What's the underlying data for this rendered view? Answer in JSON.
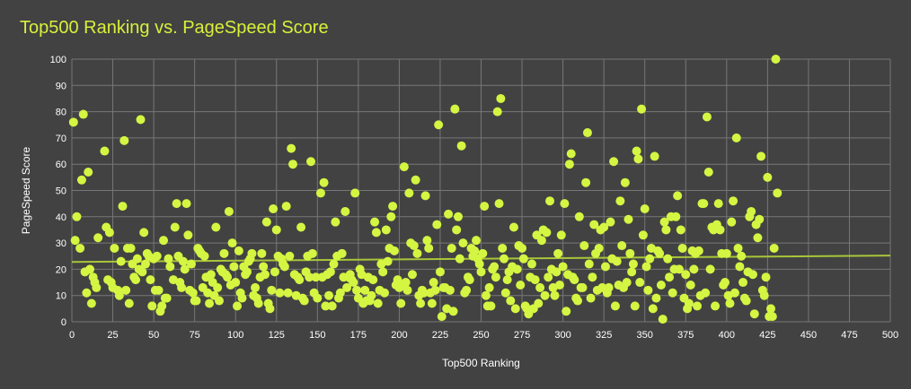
{
  "chart_data": {
    "type": "scatter",
    "title": "Top500 Ranking vs. PageSpeed Score",
    "xlabel": "Top500 Ranking",
    "ylabel": "PageSpeed Score",
    "xlim": [
      0,
      500
    ],
    "ylim": [
      0,
      100
    ],
    "xticks": [
      "0",
      "25",
      "50",
      "75",
      "100",
      "125",
      "150",
      "175",
      "200",
      "225",
      "250",
      "275",
      "300",
      "325",
      "350",
      "375",
      "400",
      "425",
      "450",
      "475",
      "500"
    ],
    "yticks": [
      "0",
      "10",
      "20",
      "30",
      "40",
      "50",
      "60",
      "70",
      "80",
      "90",
      "100"
    ],
    "grid": true,
    "legend": "none",
    "trendline": {
      "type": "linear",
      "start": [
        0,
        22.8
      ],
      "end": [
        500,
        25.2
      ]
    },
    "colors": {
      "points": "#d4f542",
      "trendline": "#a8c63a",
      "background": "#424242",
      "grid": "#777777",
      "text": "#ffffff",
      "title": "#d8f03a"
    },
    "points": [
      [
        1,
        76
      ],
      [
        2,
        31
      ],
      [
        3,
        40
      ],
      [
        5,
        28
      ],
      [
        6,
        54
      ],
      [
        7,
        79
      ],
      [
        8,
        19
      ],
      [
        9,
        11
      ],
      [
        10,
        57
      ],
      [
        11,
        20
      ],
      [
        12,
        7
      ],
      [
        13,
        17
      ],
      [
        14,
        15
      ],
      [
        15,
        13
      ],
      [
        16,
        32
      ],
      [
        20,
        65
      ],
      [
        21,
        36
      ],
      [
        22,
        16
      ],
      [
        23,
        34
      ],
      [
        24,
        15
      ],
      [
        25,
        13
      ],
      [
        26,
        28
      ],
      [
        28,
        12
      ],
      [
        29,
        10
      ],
      [
        30,
        23
      ],
      [
        31,
        44
      ],
      [
        32,
        69
      ],
      [
        33,
        12
      ],
      [
        34,
        28
      ],
      [
        35,
        7
      ],
      [
        36,
        28
      ],
      [
        37,
        22
      ],
      [
        38,
        17
      ],
      [
        39,
        16
      ],
      [
        40,
        24
      ],
      [
        41,
        20
      ],
      [
        42,
        77
      ],
      [
        43,
        19
      ],
      [
        44,
        34
      ],
      [
        45,
        22
      ],
      [
        46,
        26
      ],
      [
        47,
        25
      ],
      [
        48,
        16
      ],
      [
        49,
        6
      ],
      [
        50,
        24
      ],
      [
        51,
        12
      ],
      [
        52,
        25
      ],
      [
        53,
        12
      ],
      [
        54,
        4
      ],
      [
        55,
        6
      ],
      [
        56,
        31
      ],
      [
        57,
        9
      ],
      [
        58,
        9
      ],
      [
        59,
        24
      ],
      [
        60,
        21
      ],
      [
        62,
        16
      ],
      [
        63,
        36
      ],
      [
        64,
        45
      ],
      [
        65,
        25
      ],
      [
        66,
        15
      ],
      [
        67,
        13
      ],
      [
        68,
        23
      ],
      [
        69,
        20
      ],
      [
        70,
        45
      ],
      [
        71,
        33
      ],
      [
        72,
        12
      ],
      [
        73,
        22
      ],
      [
        74,
        11
      ],
      [
        75,
        8
      ],
      [
        76,
        8
      ],
      [
        77,
        28
      ],
      [
        78,
        27
      ],
      [
        79,
        26
      ],
      [
        80,
        13
      ],
      [
        81,
        25
      ],
      [
        82,
        17
      ],
      [
        83,
        11
      ],
      [
        84,
        7
      ],
      [
        85,
        18
      ],
      [
        86,
        15
      ],
      [
        87,
        10
      ],
      [
        88,
        36
      ],
      [
        89,
        13
      ],
      [
        90,
        8
      ],
      [
        91,
        20
      ],
      [
        92,
        19
      ],
      [
        93,
        26
      ],
      [
        94,
        18
      ],
      [
        95,
        17
      ],
      [
        96,
        42
      ],
      [
        97,
        14
      ],
      [
        98,
        30
      ],
      [
        99,
        21
      ],
      [
        100,
        15
      ],
      [
        101,
        6
      ],
      [
        102,
        27
      ],
      [
        103,
        11
      ],
      [
        104,
        9
      ],
      [
        105,
        21
      ],
      [
        106,
        18
      ],
      [
        107,
        19
      ],
      [
        108,
        23
      ],
      [
        109,
        24
      ],
      [
        110,
        26
      ],
      [
        111,
        10
      ],
      [
        112,
        13
      ],
      [
        113,
        9
      ],
      [
        114,
        7
      ],
      [
        115,
        17
      ],
      [
        116,
        26
      ],
      [
        117,
        21
      ],
      [
        118,
        18
      ],
      [
        119,
        38
      ],
      [
        120,
        7
      ],
      [
        121,
        5
      ],
      [
        122,
        12
      ],
      [
        123,
        43
      ],
      [
        124,
        19
      ],
      [
        125,
        35
      ],
      [
        126,
        25
      ],
      [
        127,
        11
      ],
      [
        128,
        24
      ],
      [
        129,
        22
      ],
      [
        130,
        21
      ],
      [
        131,
        44
      ],
      [
        132,
        11
      ],
      [
        133,
        25
      ],
      [
        134,
        66
      ],
      [
        135,
        60
      ],
      [
        136,
        18
      ],
      [
        137,
        10
      ],
      [
        138,
        17
      ],
      [
        139,
        16
      ],
      [
        140,
        36
      ],
      [
        141,
        9
      ],
      [
        142,
        8
      ],
      [
        143,
        19
      ],
      [
        144,
        25
      ],
      [
        145,
        17
      ],
      [
        146,
        61
      ],
      [
        147,
        26
      ],
      [
        148,
        11
      ],
      [
        149,
        17
      ],
      [
        150,
        9
      ],
      [
        152,
        49
      ],
      [
        153,
        17
      ],
      [
        154,
        53
      ],
      [
        155,
        6
      ],
      [
        156,
        18
      ],
      [
        157,
        10
      ],
      [
        158,
        19
      ],
      [
        159,
        6
      ],
      [
        160,
        22
      ],
      [
        161,
        38
      ],
      [
        162,
        25
      ],
      [
        163,
        9
      ],
      [
        164,
        11
      ],
      [
        165,
        26
      ],
      [
        166,
        17
      ],
      [
        167,
        42
      ],
      [
        168,
        13
      ],
      [
        169,
        17
      ],
      [
        170,
        18
      ],
      [
        171,
        16
      ],
      [
        172,
        15
      ],
      [
        173,
        49
      ],
      [
        174,
        12
      ],
      [
        175,
        9
      ],
      [
        176,
        20
      ],
      [
        177,
        18
      ],
      [
        178,
        7
      ],
      [
        179,
        12
      ],
      [
        180,
        8
      ],
      [
        181,
        17
      ],
      [
        182,
        8
      ],
      [
        183,
        10
      ],
      [
        184,
        16
      ],
      [
        185,
        38
      ],
      [
        186,
        34
      ],
      [
        187,
        7
      ],
      [
        188,
        12
      ],
      [
        189,
        22
      ],
      [
        190,
        19
      ],
      [
        191,
        11
      ],
      [
        192,
        35
      ],
      [
        193,
        23
      ],
      [
        194,
        28
      ],
      [
        195,
        40
      ],
      [
        196,
        44
      ],
      [
        197,
        27
      ],
      [
        198,
        14
      ],
      [
        199,
        16
      ],
      [
        200,
        13
      ],
      [
        201,
        7
      ],
      [
        202,
        14
      ],
      [
        203,
        59
      ],
      [
        204,
        15
      ],
      [
        205,
        12
      ],
      [
        206,
        49
      ],
      [
        207,
        30
      ],
      [
        208,
        18
      ],
      [
        209,
        29
      ],
      [
        210,
        54
      ],
      [
        211,
        26
      ],
      [
        212,
        10
      ],
      [
        213,
        7
      ],
      [
        214,
        12
      ],
      [
        215,
        11
      ],
      [
        216,
        48
      ],
      [
        217,
        31
      ],
      [
        218,
        28
      ],
      [
        219,
        11
      ],
      [
        220,
        7
      ],
      [
        221,
        15
      ],
      [
        222,
        12
      ],
      [
        223,
        37
      ],
      [
        224,
        75
      ],
      [
        225,
        19
      ],
      [
        226,
        2
      ],
      [
        227,
        13
      ],
      [
        228,
        13
      ],
      [
        229,
        5
      ],
      [
        230,
        41
      ],
      [
        231,
        12
      ],
      [
        232,
        28
      ],
      [
        233,
        4
      ],
      [
        234,
        81
      ],
      [
        235,
        35
      ],
      [
        236,
        40
      ],
      [
        237,
        24
      ],
      [
        238,
        67
      ],
      [
        239,
        30
      ],
      [
        240,
        11
      ],
      [
        241,
        12
      ],
      [
        242,
        17
      ],
      [
        243,
        16
      ],
      [
        244,
        28
      ],
      [
        245,
        25
      ],
      [
        246,
        27
      ],
      [
        247,
        31
      ],
      [
        248,
        24
      ],
      [
        249,
        22
      ],
      [
        250,
        19
      ],
      [
        251,
        26
      ],
      [
        252,
        44
      ],
      [
        253,
        10
      ],
      [
        254,
        6
      ],
      [
        255,
        13
      ],
      [
        256,
        6
      ],
      [
        257,
        20
      ],
      [
        258,
        21
      ],
      [
        259,
        17
      ],
      [
        260,
        80
      ],
      [
        261,
        45
      ],
      [
        262,
        85
      ],
      [
        263,
        28
      ],
      [
        264,
        24
      ],
      [
        265,
        11
      ],
      [
        266,
        16
      ],
      [
        267,
        19
      ],
      [
        268,
        8
      ],
      [
        269,
        21
      ],
      [
        270,
        36
      ],
      [
        271,
        5
      ],
      [
        272,
        20
      ],
      [
        273,
        29
      ],
      [
        274,
        14
      ],
      [
        275,
        28
      ],
      [
        276,
        24
      ],
      [
        277,
        6
      ],
      [
        278,
        5
      ],
      [
        279,
        3
      ],
      [
        280,
        17
      ],
      [
        281,
        22
      ],
      [
        282,
        5
      ],
      [
        283,
        16
      ],
      [
        284,
        33
      ],
      [
        285,
        7
      ],
      [
        286,
        13
      ],
      [
        287,
        31
      ],
      [
        288,
        35
      ],
      [
        289,
        10
      ],
      [
        290,
        34
      ],
      [
        291,
        17
      ],
      [
        292,
        46
      ],
      [
        293,
        20
      ],
      [
        294,
        13
      ],
      [
        295,
        10
      ],
      [
        296,
        19
      ],
      [
        297,
        26
      ],
      [
        298,
        14
      ],
      [
        299,
        33
      ],
      [
        300,
        21
      ],
      [
        301,
        45
      ],
      [
        302,
        4
      ],
      [
        303,
        18
      ],
      [
        304,
        60
      ],
      [
        305,
        64
      ],
      [
        306,
        17
      ],
      [
        307,
        16
      ],
      [
        308,
        9
      ],
      [
        309,
        8
      ],
      [
        310,
        40
      ],
      [
        311,
        13
      ],
      [
        312,
        13
      ],
      [
        313,
        29
      ],
      [
        314,
        53
      ],
      [
        315,
        72
      ],
      [
        316,
        22
      ],
      [
        317,
        9
      ],
      [
        318,
        17
      ],
      [
        319,
        37
      ],
      [
        320,
        26
      ],
      [
        321,
        12
      ],
      [
        322,
        28
      ],
      [
        323,
        35
      ],
      [
        324,
        13
      ],
      [
        325,
        36
      ],
      [
        326,
        21
      ],
      [
        327,
        11
      ],
      [
        328,
        13
      ],
      [
        329,
        38
      ],
      [
        330,
        24
      ],
      [
        331,
        61
      ],
      [
        332,
        6
      ],
      [
        333,
        23
      ],
      [
        334,
        14
      ],
      [
        335,
        46
      ],
      [
        336,
        29
      ],
      [
        337,
        13
      ],
      [
        338,
        53
      ],
      [
        339,
        15
      ],
      [
        340,
        39
      ],
      [
        341,
        26
      ],
      [
        342,
        19
      ],
      [
        343,
        22
      ],
      [
        344,
        6
      ],
      [
        345,
        65
      ],
      [
        346,
        62
      ],
      [
        347,
        15
      ],
      [
        348,
        81
      ],
      [
        349,
        33
      ],
      [
        350,
        43
      ],
      [
        351,
        21
      ],
      [
        352,
        12
      ],
      [
        353,
        24
      ],
      [
        354,
        28
      ],
      [
        355,
        5
      ],
      [
        356,
        63
      ],
      [
        357,
        9
      ],
      [
        358,
        27
      ],
      [
        359,
        26
      ],
      [
        360,
        14
      ],
      [
        361,
        1
      ],
      [
        362,
        38
      ],
      [
        363,
        35
      ],
      [
        364,
        24
      ],
      [
        365,
        17
      ],
      [
        366,
        40
      ],
      [
        367,
        11
      ],
      [
        368,
        20
      ],
      [
        369,
        40
      ],
      [
        370,
        48
      ],
      [
        371,
        20
      ],
      [
        372,
        35
      ],
      [
        373,
        28
      ],
      [
        374,
        9
      ],
      [
        375,
        18
      ],
      [
        376,
        5
      ],
      [
        377,
        7
      ],
      [
        378,
        14
      ],
      [
        379,
        27
      ],
      [
        380,
        20
      ],
      [
        381,
        26
      ],
      [
        382,
        6
      ],
      [
        383,
        27
      ],
      [
        384,
        10
      ],
      [
        385,
        45
      ],
      [
        386,
        45
      ],
      [
        387,
        11
      ],
      [
        388,
        78
      ],
      [
        389,
        57
      ],
      [
        390,
        20
      ],
      [
        391,
        36
      ],
      [
        392,
        35
      ],
      [
        393,
        6
      ],
      [
        394,
        37
      ],
      [
        395,
        45
      ],
      [
        396,
        35
      ],
      [
        397,
        26
      ],
      [
        398,
        14
      ],
      [
        399,
        15
      ],
      [
        400,
        26
      ],
      [
        401,
        10
      ],
      [
        402,
        7
      ],
      [
        403,
        38
      ],
      [
        404,
        46
      ],
      [
        405,
        11
      ],
      [
        406,
        70
      ],
      [
        407,
        28
      ],
      [
        408,
        21
      ],
      [
        409,
        25
      ],
      [
        410,
        15
      ],
      [
        411,
        9
      ],
      [
        412,
        8
      ],
      [
        413,
        19
      ],
      [
        414,
        40
      ],
      [
        415,
        42
      ],
      [
        416,
        18
      ],
      [
        417,
        3
      ],
      [
        418,
        37
      ],
      [
        419,
        32
      ],
      [
        420,
        39
      ],
      [
        421,
        63
      ],
      [
        422,
        12
      ],
      [
        423,
        10
      ],
      [
        424,
        17
      ],
      [
        425,
        55
      ],
      [
        426,
        2
      ],
      [
        427,
        5
      ],
      [
        428,
        2
      ],
      [
        429,
        28
      ],
      [
        430,
        100
      ],
      [
        431,
        49
      ]
    ]
  }
}
